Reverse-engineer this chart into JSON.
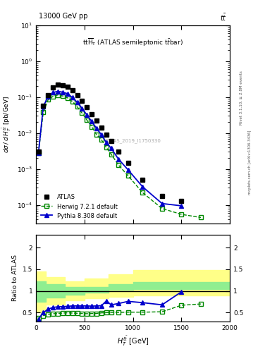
{
  "xlim": [
    0,
    2000
  ],
  "ylim_main": [
    3e-05,
    10
  ],
  "ylim_ratio": [
    0.3,
    2.3
  ],
  "atlas_x": [
    25,
    75,
    125,
    175,
    225,
    275,
    325,
    375,
    425,
    475,
    525,
    575,
    625,
    675,
    725,
    775,
    850,
    950,
    1100,
    1300,
    1500
  ],
  "atlas_y": [
    0.003,
    0.058,
    0.115,
    0.19,
    0.22,
    0.215,
    0.195,
    0.155,
    0.115,
    0.078,
    0.052,
    0.034,
    0.022,
    0.014,
    0.009,
    0.006,
    0.003,
    0.0015,
    0.0005,
    0.00018,
    0.00013
  ],
  "herwig_x": [
    25,
    75,
    125,
    175,
    225,
    275,
    325,
    375,
    425,
    475,
    525,
    575,
    625,
    675,
    725,
    775,
    850,
    950,
    1100,
    1300,
    1500,
    1700
  ],
  "herwig_y": [
    0.0028,
    0.038,
    0.085,
    0.105,
    0.115,
    0.108,
    0.096,
    0.075,
    0.054,
    0.036,
    0.023,
    0.015,
    0.009,
    0.0065,
    0.004,
    0.0026,
    0.0013,
    0.00065,
    0.00022,
    8e-05,
    5.5e-05,
    4.5e-05
  ],
  "pythia_x": [
    25,
    75,
    125,
    175,
    225,
    275,
    325,
    375,
    425,
    475,
    525,
    575,
    625,
    675,
    725,
    775,
    850,
    950,
    1100,
    1300,
    1500
  ],
  "pythia_y": [
    0.0028,
    0.055,
    0.105,
    0.135,
    0.145,
    0.138,
    0.125,
    0.098,
    0.072,
    0.049,
    0.032,
    0.021,
    0.0135,
    0.009,
    0.0055,
    0.0038,
    0.0019,
    0.00095,
    0.00032,
    0.00011,
    9.5e-05
  ],
  "herwig_ratio_x": [
    25,
    75,
    125,
    175,
    225,
    275,
    325,
    375,
    425,
    475,
    525,
    575,
    625,
    675,
    725,
    775,
    850,
    950,
    1100,
    1300,
    1500,
    1700
  ],
  "herwig_ratio_y": [
    0.38,
    0.43,
    0.46,
    0.475,
    0.48,
    0.49,
    0.495,
    0.49,
    0.485,
    0.48,
    0.475,
    0.48,
    0.48,
    0.495,
    0.5,
    0.505,
    0.505,
    0.51,
    0.51,
    0.52,
    0.67,
    0.7
  ],
  "pythia_ratio_x": [
    25,
    75,
    125,
    175,
    225,
    275,
    325,
    375,
    425,
    475,
    525,
    575,
    625,
    675,
    725,
    775,
    850,
    950,
    1100,
    1300,
    1500
  ],
  "pythia_ratio_y": [
    0.35,
    0.5,
    0.58,
    0.62,
    0.635,
    0.64,
    0.645,
    0.655,
    0.655,
    0.655,
    0.655,
    0.65,
    0.655,
    0.66,
    0.77,
    0.68,
    0.71,
    0.76,
    0.73,
    0.68,
    0.98
  ],
  "band_edges": [
    0,
    100,
    300,
    500,
    750,
    1000,
    2000
  ],
  "green_lo": [
    0.75,
    0.85,
    0.92,
    0.97,
    1.02,
    1.05
  ],
  "green_hi": [
    1.22,
    1.15,
    1.1,
    1.1,
    1.15,
    1.2
  ],
  "yellow_lo": [
    0.5,
    0.68,
    0.78,
    0.83,
    0.87,
    0.9
  ],
  "yellow_hi": [
    1.45,
    1.32,
    1.22,
    1.28,
    1.38,
    1.48
  ],
  "atlas_color": "#000000",
  "herwig_color": "#008800",
  "pythia_color": "#0000cc",
  "green_band_color": "#90ee90",
  "yellow_band_color": "#ffff88"
}
